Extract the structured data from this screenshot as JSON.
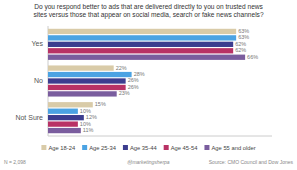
{
  "chart_data": {
    "type": "bar",
    "orientation": "horizontal",
    "title": "Do you respond better to ads that are delivered directly to you on trusted news\nsites versus those that appear on social media, search or fake news channels?",
    "categories": [
      "Yes",
      "No",
      "Not Sure"
    ],
    "series": [
      {
        "name": "Age 18-24",
        "color": "#d9cba8",
        "values": [
          63,
          22,
          15
        ],
        "value_labels": [
          "63%",
          "22%",
          "15%"
        ]
      },
      {
        "name": "Age 25-34",
        "color": "#4ba3e3",
        "values": [
          63,
          28,
          10
        ],
        "value_labels": [
          "63%",
          "28%",
          "10%"
        ]
      },
      {
        "name": "Age 35-44",
        "color": "#3c3d8f",
        "values": [
          62,
          26,
          12
        ],
        "value_labels": [
          "62%",
          "26%",
          "12%"
        ]
      },
      {
        "name": "Age 45-54",
        "color": "#b83265",
        "values": [
          62,
          26,
          10
        ],
        "value_labels": [
          "62%",
          "26%",
          "10%"
        ]
      },
      {
        "name": "Age 55 and older",
        "color": "#7a5d9e",
        "values": [
          66,
          23,
          11
        ],
        "value_labels": [
          "66%",
          "23%",
          "11%"
        ]
      }
    ],
    "xlim": [
      0,
      75
    ],
    "tick_labels": false,
    "data_labels": true,
    "legend": "bottom",
    "grid": false,
    "annotations": [
      "N = 2,098",
      "Source: CMO Council and Dow Jones",
      "Ⓜmarketingsherpa"
    ]
  }
}
